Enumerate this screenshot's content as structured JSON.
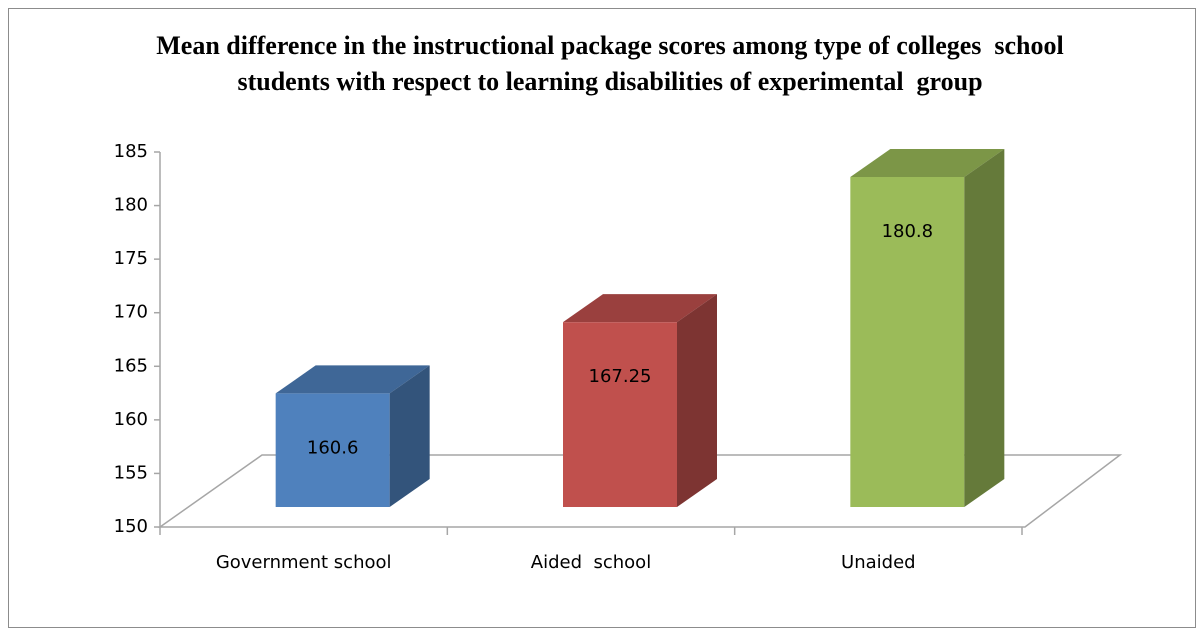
{
  "chart_data": {
    "type": "bar3d",
    "title": "Mean difference in the instructional package scores among type of colleges  school students with respect to learning disabilities of experimental  group",
    "categories": [
      "Government school",
      "Aided  school",
      "Unaided"
    ],
    "values": [
      160.6,
      167.25,
      180.8
    ],
    "colors": [
      "#4f81bd",
      "#c0504d",
      "#9bbb59"
    ],
    "ylim": [
      150,
      185
    ],
    "yticks": [
      150,
      155,
      160,
      165,
      170,
      175,
      180,
      185
    ]
  }
}
